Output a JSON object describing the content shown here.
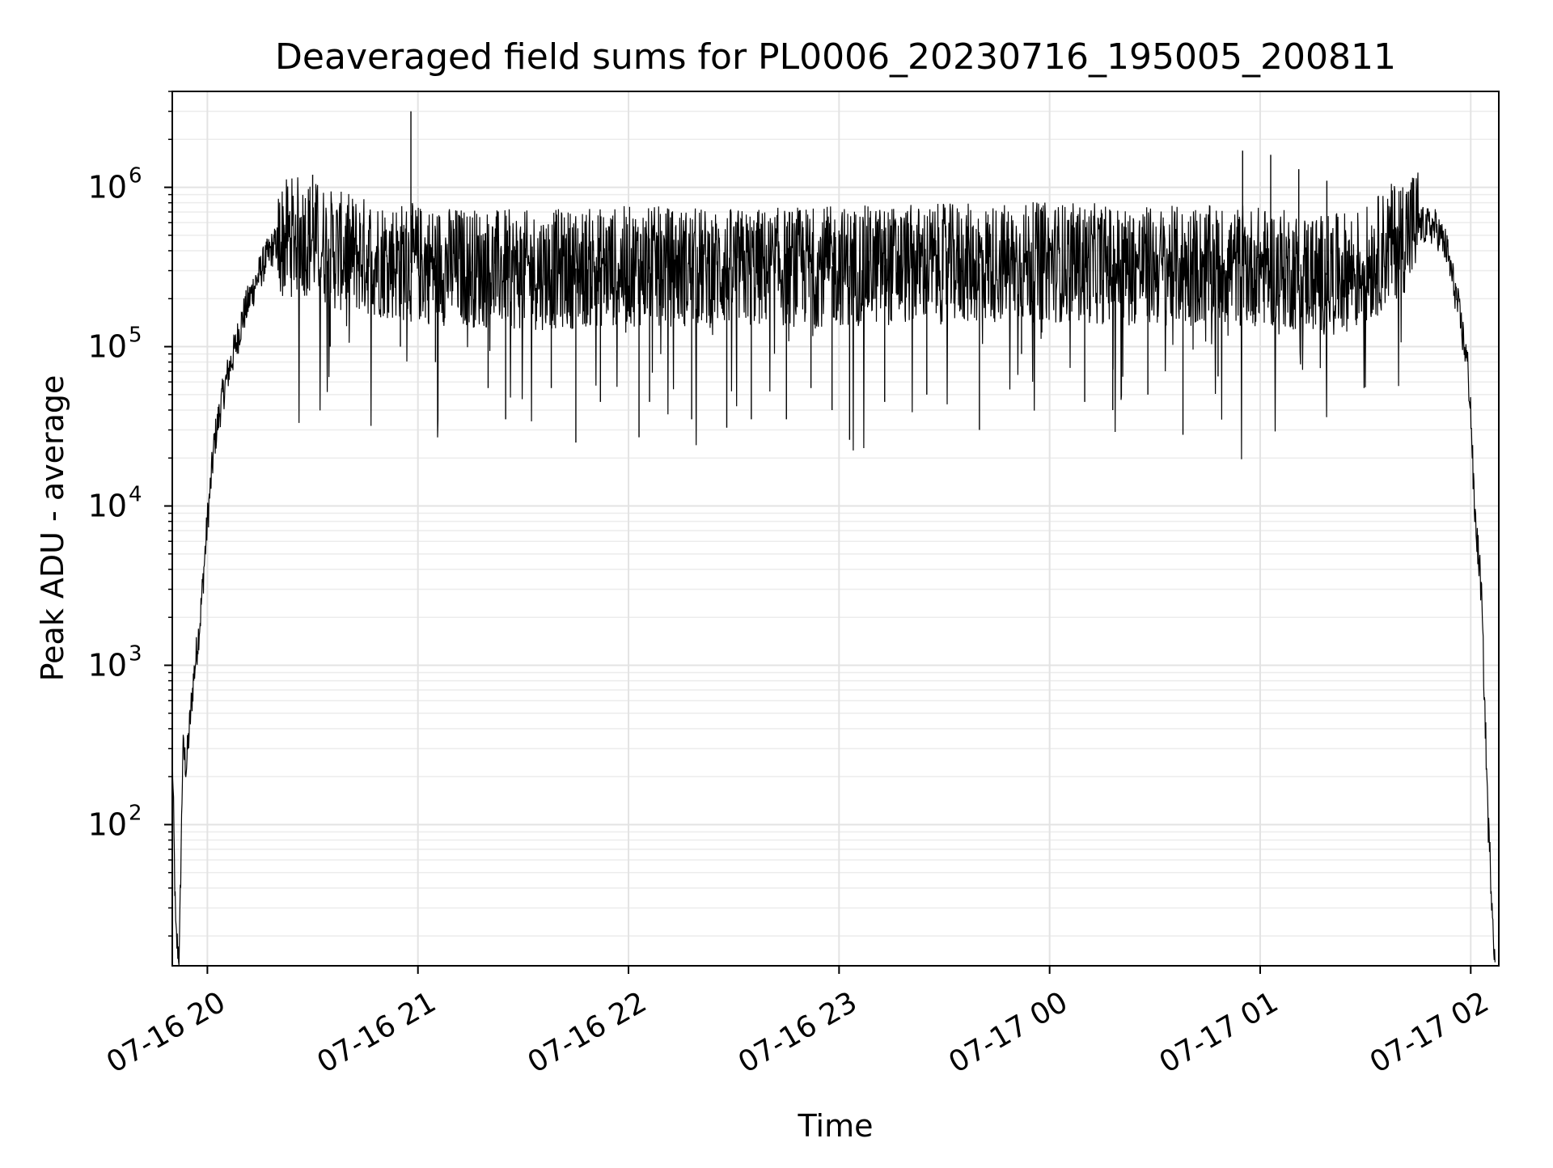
{
  "chart_data": {
    "type": "line",
    "title": "Deaveraged field sums for PL0006_20230716_195005_200811",
    "xlabel": "Time",
    "ylabel": "Peak ADU - average",
    "y_scale": "log",
    "ylim": [
      13,
      4000000
    ],
    "xlim": [
      "07-16 19:50",
      "07-17 02:08"
    ],
    "grid": true,
    "grid_minor": true,
    "line_color": "#000000",
    "x_ticks": [
      "07-16 20",
      "07-16 21",
      "07-16 22",
      "07-16 23",
      "07-17 00",
      "07-17 01",
      "07-17 02"
    ],
    "x_tick_times": [
      "07-16 20:00",
      "07-16 21:00",
      "07-16 22:00",
      "07-16 23:00",
      "07-17 00:00",
      "07-17 01:00",
      "07-17 02:00"
    ],
    "y_ticks": [
      {
        "value": 100,
        "base": "10",
        "exp": "2"
      },
      {
        "value": 1000,
        "base": "10",
        "exp": "3"
      },
      {
        "value": 10000,
        "base": "10",
        "exp": "4"
      },
      {
        "value": 100000,
        "base": "10",
        "exp": "5"
      },
      {
        "value": 1000000,
        "base": "10",
        "exp": "6"
      }
    ],
    "series": [
      {
        "x": [
          "07-16 19:50",
          "07-16 19:51",
          "07-16 19:52",
          "07-16 19:53",
          "07-16 19:54",
          "07-16 19:56",
          "07-16 19:58",
          "07-16 20:00",
          "07-16 20:02",
          "07-16 20:04",
          "07-16 20:06",
          "07-16 20:08",
          "07-16 20:10",
          "07-16 20:12",
          "07-16 20:14",
          "07-16 20:16",
          "07-16 20:18",
          "07-16 20:20",
          "07-16 20:25",
          "07-16 20:30",
          "07-16 20:36",
          "07-16 20:42",
          "07-16 21:00",
          "07-16 21:30",
          "07-16 22:00",
          "07-16 22:30",
          "07-16 23:00",
          "07-16 23:30",
          "07-17 00:00",
          "07-17 00:30",
          "07-17 01:00",
          "07-17 01:20",
          "07-17 01:30",
          "07-17 01:35",
          "07-17 01:40",
          "07-17 01:45",
          "07-17 01:50",
          "07-17 01:53",
          "07-17 01:56",
          "07-17 01:59",
          "07-17 02:00",
          "07-17 02:01",
          "07-17 02:03",
          "07-17 02:05",
          "07-17 02:07"
        ],
        "y": [
          300,
          20,
          15,
          300,
          230,
          800,
          2000,
          8000,
          25000,
          45000,
          70000,
          100000,
          150000,
          200000,
          260000,
          330000,
          400000,
          450000,
          500000,
          480000,
          400000,
          380000,
          330000,
          300000,
          320000,
          310000,
          320000,
          330000,
          340000,
          320000,
          320000,
          280000,
          320000,
          400000,
          500000,
          580000,
          560000,
          420000,
          200000,
          80000,
          40000,
          10000,
          3000,
          100,
          13
        ]
      }
    ],
    "spikes": [
      {
        "x": "07-16 20:30",
        "y": 1200000
      },
      {
        "x": "07-16 20:58",
        "y": 3000000
      },
      {
        "x": "07-17 00:55",
        "y": 1700000
      },
      {
        "x": "07-17 01:03",
        "y": 1600000
      },
      {
        "x": "07-17 01:11",
        "y": 1300000
      },
      {
        "x": "07-17 01:19",
        "y": 1100000
      },
      {
        "x": "07-16 20:35",
        "y": 100000
      },
      {
        "x": "07-16 20:55",
        "y": 100000
      },
      {
        "x": "07-16 21:05",
        "y": 80000
      },
      {
        "x": "07-16 21:20",
        "y": 55000
      },
      {
        "x": "07-16 21:25",
        "y": 35000
      },
      {
        "x": "07-16 21:38",
        "y": 55000
      },
      {
        "x": "07-16 21:45",
        "y": 25000
      },
      {
        "x": "07-16 21:52",
        "y": 45000
      },
      {
        "x": "07-16 22:03",
        "y": 27000
      },
      {
        "x": "07-16 22:06",
        "y": 45000
      },
      {
        "x": "07-16 22:18",
        "y": 35000
      },
      {
        "x": "07-16 22:28",
        "y": 31000
      },
      {
        "x": "07-16 22:35",
        "y": 35000
      },
      {
        "x": "07-16 22:45",
        "y": 35000
      },
      {
        "x": "07-16 22:52",
        "y": 55000
      },
      {
        "x": "07-16 22:58",
        "y": 40000
      },
      {
        "x": "07-16 23:03",
        "y": 26000
      },
      {
        "x": "07-16 23:13",
        "y": 45000
      },
      {
        "x": "07-16 23:25",
        "y": 50000
      },
      {
        "x": "07-16 23:40",
        "y": 30000
      },
      {
        "x": "07-16 23:52",
        "y": 90000
      },
      {
        "x": "07-17 00:10",
        "y": 45000
      },
      {
        "x": "07-17 00:18",
        "y": 40000
      },
      {
        "x": "07-17 00:28",
        "y": 50000
      },
      {
        "x": "07-17 00:38",
        "y": 28000
      },
      {
        "x": "07-17 00:48",
        "y": 65000
      }
    ]
  }
}
